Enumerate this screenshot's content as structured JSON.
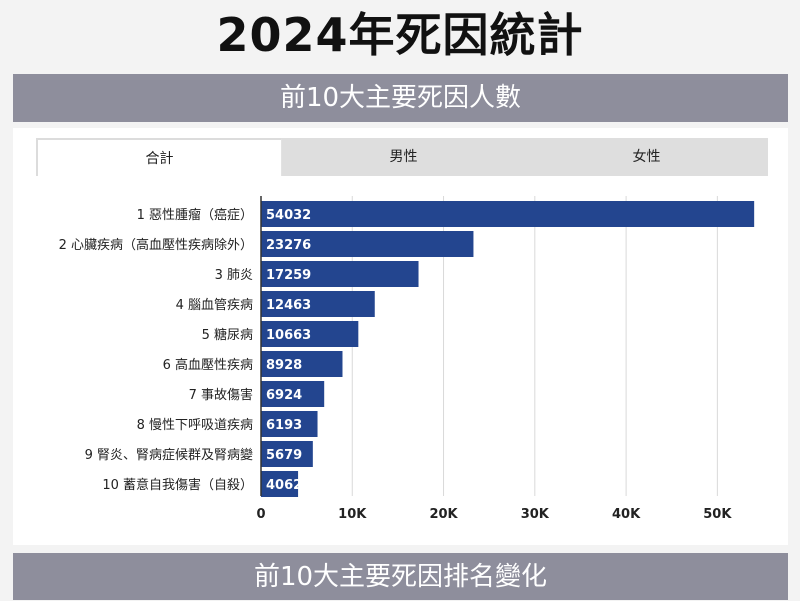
{
  "page": {
    "title": "2024年死因統計",
    "section1_title": "前10大主要死因人數",
    "section2_title": "前10大主要死因排名變化"
  },
  "tabs": [
    {
      "label": "合計",
      "active": true
    },
    {
      "label": "男性",
      "active": false
    },
    {
      "label": "女性",
      "active": false
    }
  ],
  "colors": {
    "bar": "#23458f",
    "band": "#8e8e9c",
    "grid": "#d9d9d9"
  },
  "chart_data": {
    "type": "bar",
    "orientation": "horizontal",
    "categories": [
      "1 惡性腫瘤（癌症）",
      "2 心臟疾病（高血壓性疾病除外）",
      "3 肺炎",
      "4 腦血管疾病",
      "5 糖尿病",
      "6 高血壓性疾病",
      "7 事故傷害",
      "8 慢性下呼吸道疾病",
      "9 腎炎、腎病症候群及腎病變",
      "10 蓄意自我傷害（自殺）"
    ],
    "values": [
      54032,
      23276,
      17259,
      12463,
      10663,
      8928,
      6924,
      6193,
      5679,
      4062
    ],
    "xlim": [
      0,
      55000
    ],
    "ticks": [
      0,
      10000,
      20000,
      30000,
      40000,
      50000
    ],
    "tick_labels": [
      "0",
      "10K",
      "20K",
      "30K",
      "40K",
      "50K"
    ],
    "grid": true,
    "title": "",
    "xlabel": "",
    "ylabel": ""
  }
}
